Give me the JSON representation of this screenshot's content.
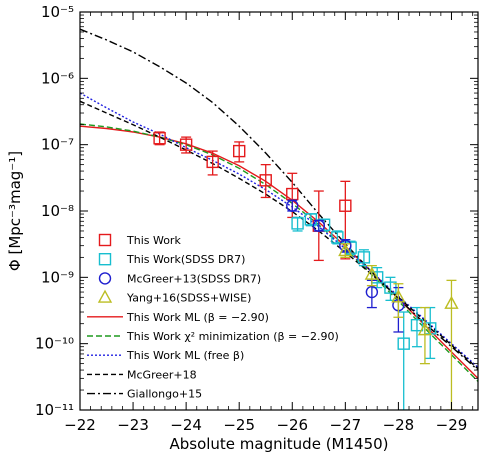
{
  "chart_data": {
    "type": "line",
    "xlabel": "Absolute magnitude (M1450)",
    "ylabel": "Φ [Mpc⁻³mag⁻¹]",
    "x_range": [
      -22,
      -29.5
    ],
    "y_range_log10": [
      -11,
      -5
    ],
    "x_ticks": [
      -22,
      -23,
      -24,
      -25,
      -26,
      -27,
      -28,
      -29
    ],
    "x_tick_labels": [
      "−22",
      "−23",
      "−24",
      "−25",
      "−26",
      "−27",
      "−28",
      "−29"
    ],
    "y_ticks_log10": [
      -11,
      -10,
      -9,
      -8,
      -7,
      -6,
      -5
    ],
    "y_tick_labels": [
      "10⁻¹¹",
      "10⁻¹⁰",
      "10⁻⁹",
      "10⁻⁸",
      "10⁻⁷",
      "10⁻⁶",
      "10⁻⁵"
    ],
    "legend_position": "bottom-left",
    "series": [
      {
        "name": "This Work",
        "kind": "points",
        "marker": "square",
        "color": "#e41a1c",
        "points": [
          {
            "x": -23.5,
            "y": 1.25e-07,
            "ylo": 1e-07,
            "yhi": 1.55e-07
          },
          {
            "x": -24.0,
            "y": 1e-07,
            "ylo": 7.5e-08,
            "yhi": 1.3e-07
          },
          {
            "x": -24.5,
            "y": 5.5e-08,
            "ylo": 3.5e-08,
            "yhi": 8e-08
          },
          {
            "x": -25.0,
            "y": 8e-08,
            "ylo": 5.5e-08,
            "yhi": 1.1e-07
          },
          {
            "x": -25.5,
            "y": 2.9e-08,
            "ylo": 1.6e-08,
            "yhi": 5e-08
          },
          {
            "x": -26.0,
            "y": 1.8e-08,
            "ylo": 8e-09,
            "yhi": 3.7e-08
          },
          {
            "x": -26.5,
            "y": 6e-09,
            "ylo": 1.8e-09,
            "yhi": 2e-08
          },
          {
            "x": -27.0,
            "y": 1.2e-08,
            "ylo": 1.9e-09,
            "yhi": 2.8e-08
          }
        ]
      },
      {
        "name": "This Work(SDSS DR7)",
        "kind": "points",
        "marker": "square",
        "color": "#17becf",
        "points": [
          {
            "x": -26.1,
            "y": 6.5e-09,
            "ylo": 5e-09,
            "yhi": 8e-09
          },
          {
            "x": -26.35,
            "y": 7.5e-09,
            "ylo": 6e-09,
            "yhi": 9e-09
          },
          {
            "x": -26.6,
            "y": 6.2e-09,
            "ylo": 5e-09,
            "yhi": 7.5e-09
          },
          {
            "x": -26.85,
            "y": 4e-09,
            "ylo": 3.2e-09,
            "yhi": 5e-09
          },
          {
            "x": -27.1,
            "y": 2.8e-09,
            "ylo": 2.2e-09,
            "yhi": 3.5e-09
          },
          {
            "x": -27.35,
            "y": 2e-09,
            "ylo": 1.5e-09,
            "yhi": 2.6e-09
          },
          {
            "x": -27.6,
            "y": 1e-09,
            "ylo": 7e-10,
            "yhi": 1.4e-09
          },
          {
            "x": -27.85,
            "y": 7e-10,
            "ylo": 4.5e-10,
            "yhi": 1e-09
          },
          {
            "x": -28.1,
            "y": 1e-10,
            "ylo": 1e-11,
            "yhi": 3e-10
          },
          {
            "x": -28.35,
            "y": 1.9e-10,
            "ylo": 9e-11,
            "yhi": 3.5e-10
          },
          {
            "x": -28.6,
            "y": 1.7e-10,
            "ylo": 6e-11,
            "yhi": 3.5e-10
          }
        ]
      },
      {
        "name": "McGreer+13(SDSS DR7)",
        "kind": "points",
        "marker": "circle",
        "color": "#1f1fcf",
        "points": [
          {
            "x": -26.0,
            "y": 1.2e-08,
            "ylo": 1e-08,
            "yhi": 1.45e-08
          },
          {
            "x": -26.5,
            "y": 6e-09,
            "ylo": 5e-09,
            "yhi": 7.2e-09
          },
          {
            "x": -27.0,
            "y": 3e-09,
            "ylo": 2.4e-09,
            "yhi": 3.7e-09
          },
          {
            "x": -27.5,
            "y": 6e-10,
            "ylo": 3.5e-10,
            "yhi": 9e-10
          },
          {
            "x": -28.0,
            "y": 3.8e-10,
            "ylo": 1.5e-10,
            "yhi": 7e-10
          }
        ]
      },
      {
        "name": "Yang+16(SDSS+WISE)",
        "kind": "points",
        "marker": "triangle",
        "color": "#bcbd22",
        "points": [
          {
            "x": -27.0,
            "y": 2.5e-09,
            "ylo": 2e-09,
            "yhi": 3.2e-09
          },
          {
            "x": -27.5,
            "y": 1.1e-09,
            "ylo": 7.5e-10,
            "yhi": 1.5e-09
          },
          {
            "x": -28.0,
            "y": 5e-10,
            "ylo": 2.5e-10,
            "yhi": 8e-10
          },
          {
            "x": -28.5,
            "y": 1.6e-10,
            "ylo": 5e-11,
            "yhi": 3.5e-10
          },
          {
            "x": -29.0,
            "y": 4e-10,
            "ylo": 1e-11,
            "yhi": 9e-10
          }
        ]
      },
      {
        "name": "This Work ML (β = −2.90)",
        "kind": "line",
        "color": "#e41a1c",
        "dash": "",
        "x": [
          -22,
          -22.5,
          -23,
          -23.5,
          -24,
          -24.5,
          -25,
          -25.5,
          -26,
          -26.5,
          -27,
          -27.5,
          -28,
          -28.5,
          -29,
          -29.5
        ],
        "y": [
          1.9e-07,
          1.75e-07,
          1.55e-07,
          1.3e-07,
          1.03e-07,
          7.4e-08,
          4.8e-08,
          2.8e-08,
          1.45e-08,
          6.8e-09,
          2.95e-09,
          1.2e-09,
          4.8e-10,
          1.9e-10,
          7.5e-11,
          3e-11
        ]
      },
      {
        "name": "This Work χ² minimization (β = −2.90)",
        "kind": "line",
        "color": "#1f9a1f",
        "dash": "6,3",
        "x": [
          -22,
          -22.5,
          -23,
          -23.5,
          -24,
          -24.5,
          -25,
          -25.5,
          -26,
          -26.5,
          -27,
          -27.5,
          -28,
          -28.5,
          -29,
          -29.5
        ],
        "y": [
          2.05e-07,
          1.85e-07,
          1.6e-07,
          1.3e-07,
          1e-07,
          7e-08,
          4.4e-08,
          2.5e-08,
          1.3e-08,
          6.2e-09,
          2.7e-09,
          1.1e-09,
          4.4e-10,
          1.7e-10,
          6.8e-11,
          2.7e-11
        ]
      },
      {
        "name": "This Work ML (free β)",
        "kind": "line",
        "color": "#2020e0",
        "dash": "2,2",
        "x": [
          -22,
          -22.5,
          -23,
          -23.5,
          -24,
          -24.5,
          -25,
          -25.5,
          -26,
          -26.5,
          -27,
          -27.5,
          -28,
          -28.5,
          -29,
          -29.5
        ],
        "y": [
          6e-07,
          3.6e-07,
          2.2e-07,
          1.45e-07,
          9e-08,
          5.8e-08,
          3.6e-08,
          2.1e-08,
          1.15e-08,
          5.8e-09,
          2.7e-09,
          1.2e-09,
          5.2e-10,
          2.3e-10,
          1e-10,
          4.4e-11
        ]
      },
      {
        "name": "McGreer+18",
        "kind": "line",
        "color": "#000000",
        "dash": "5,3",
        "x": [
          -22,
          -22.5,
          -23,
          -23.5,
          -24,
          -24.5,
          -25,
          -25.5,
          -26,
          -26.5,
          -27,
          -27.5,
          -28,
          -28.5,
          -29,
          -29.5
        ],
        "y": [
          4.5e-07,
          3e-07,
          2e-07,
          1.3e-07,
          8.3e-08,
          5.2e-08,
          3.1e-08,
          1.8e-08,
          9.8e-09,
          5e-09,
          2.4e-09,
          1.1e-09,
          5e-10,
          2.2e-10,
          9.5e-11,
          4.2e-11
        ]
      },
      {
        "name": "Giallongo+15",
        "kind": "line",
        "color": "#000000",
        "dash": "8,3,2,3",
        "x": [
          -22,
          -22.5,
          -23,
          -23.5,
          -24,
          -24.5,
          -25,
          -25.5,
          -26,
          -26.5,
          -27,
          -27.5,
          -28,
          -28.5,
          -29,
          -29.5
        ],
        "y": [
          5.5e-06,
          3.8e-06,
          2.5e-06,
          1.5e-06,
          8.5e-07,
          4.3e-07,
          1.9e-07,
          7.5e-08,
          2.7e-08,
          9e-09,
          3.2e-09,
          1.2e-09,
          4.8e-10,
          2e-10,
          9e-11,
          4e-11
        ]
      }
    ]
  }
}
